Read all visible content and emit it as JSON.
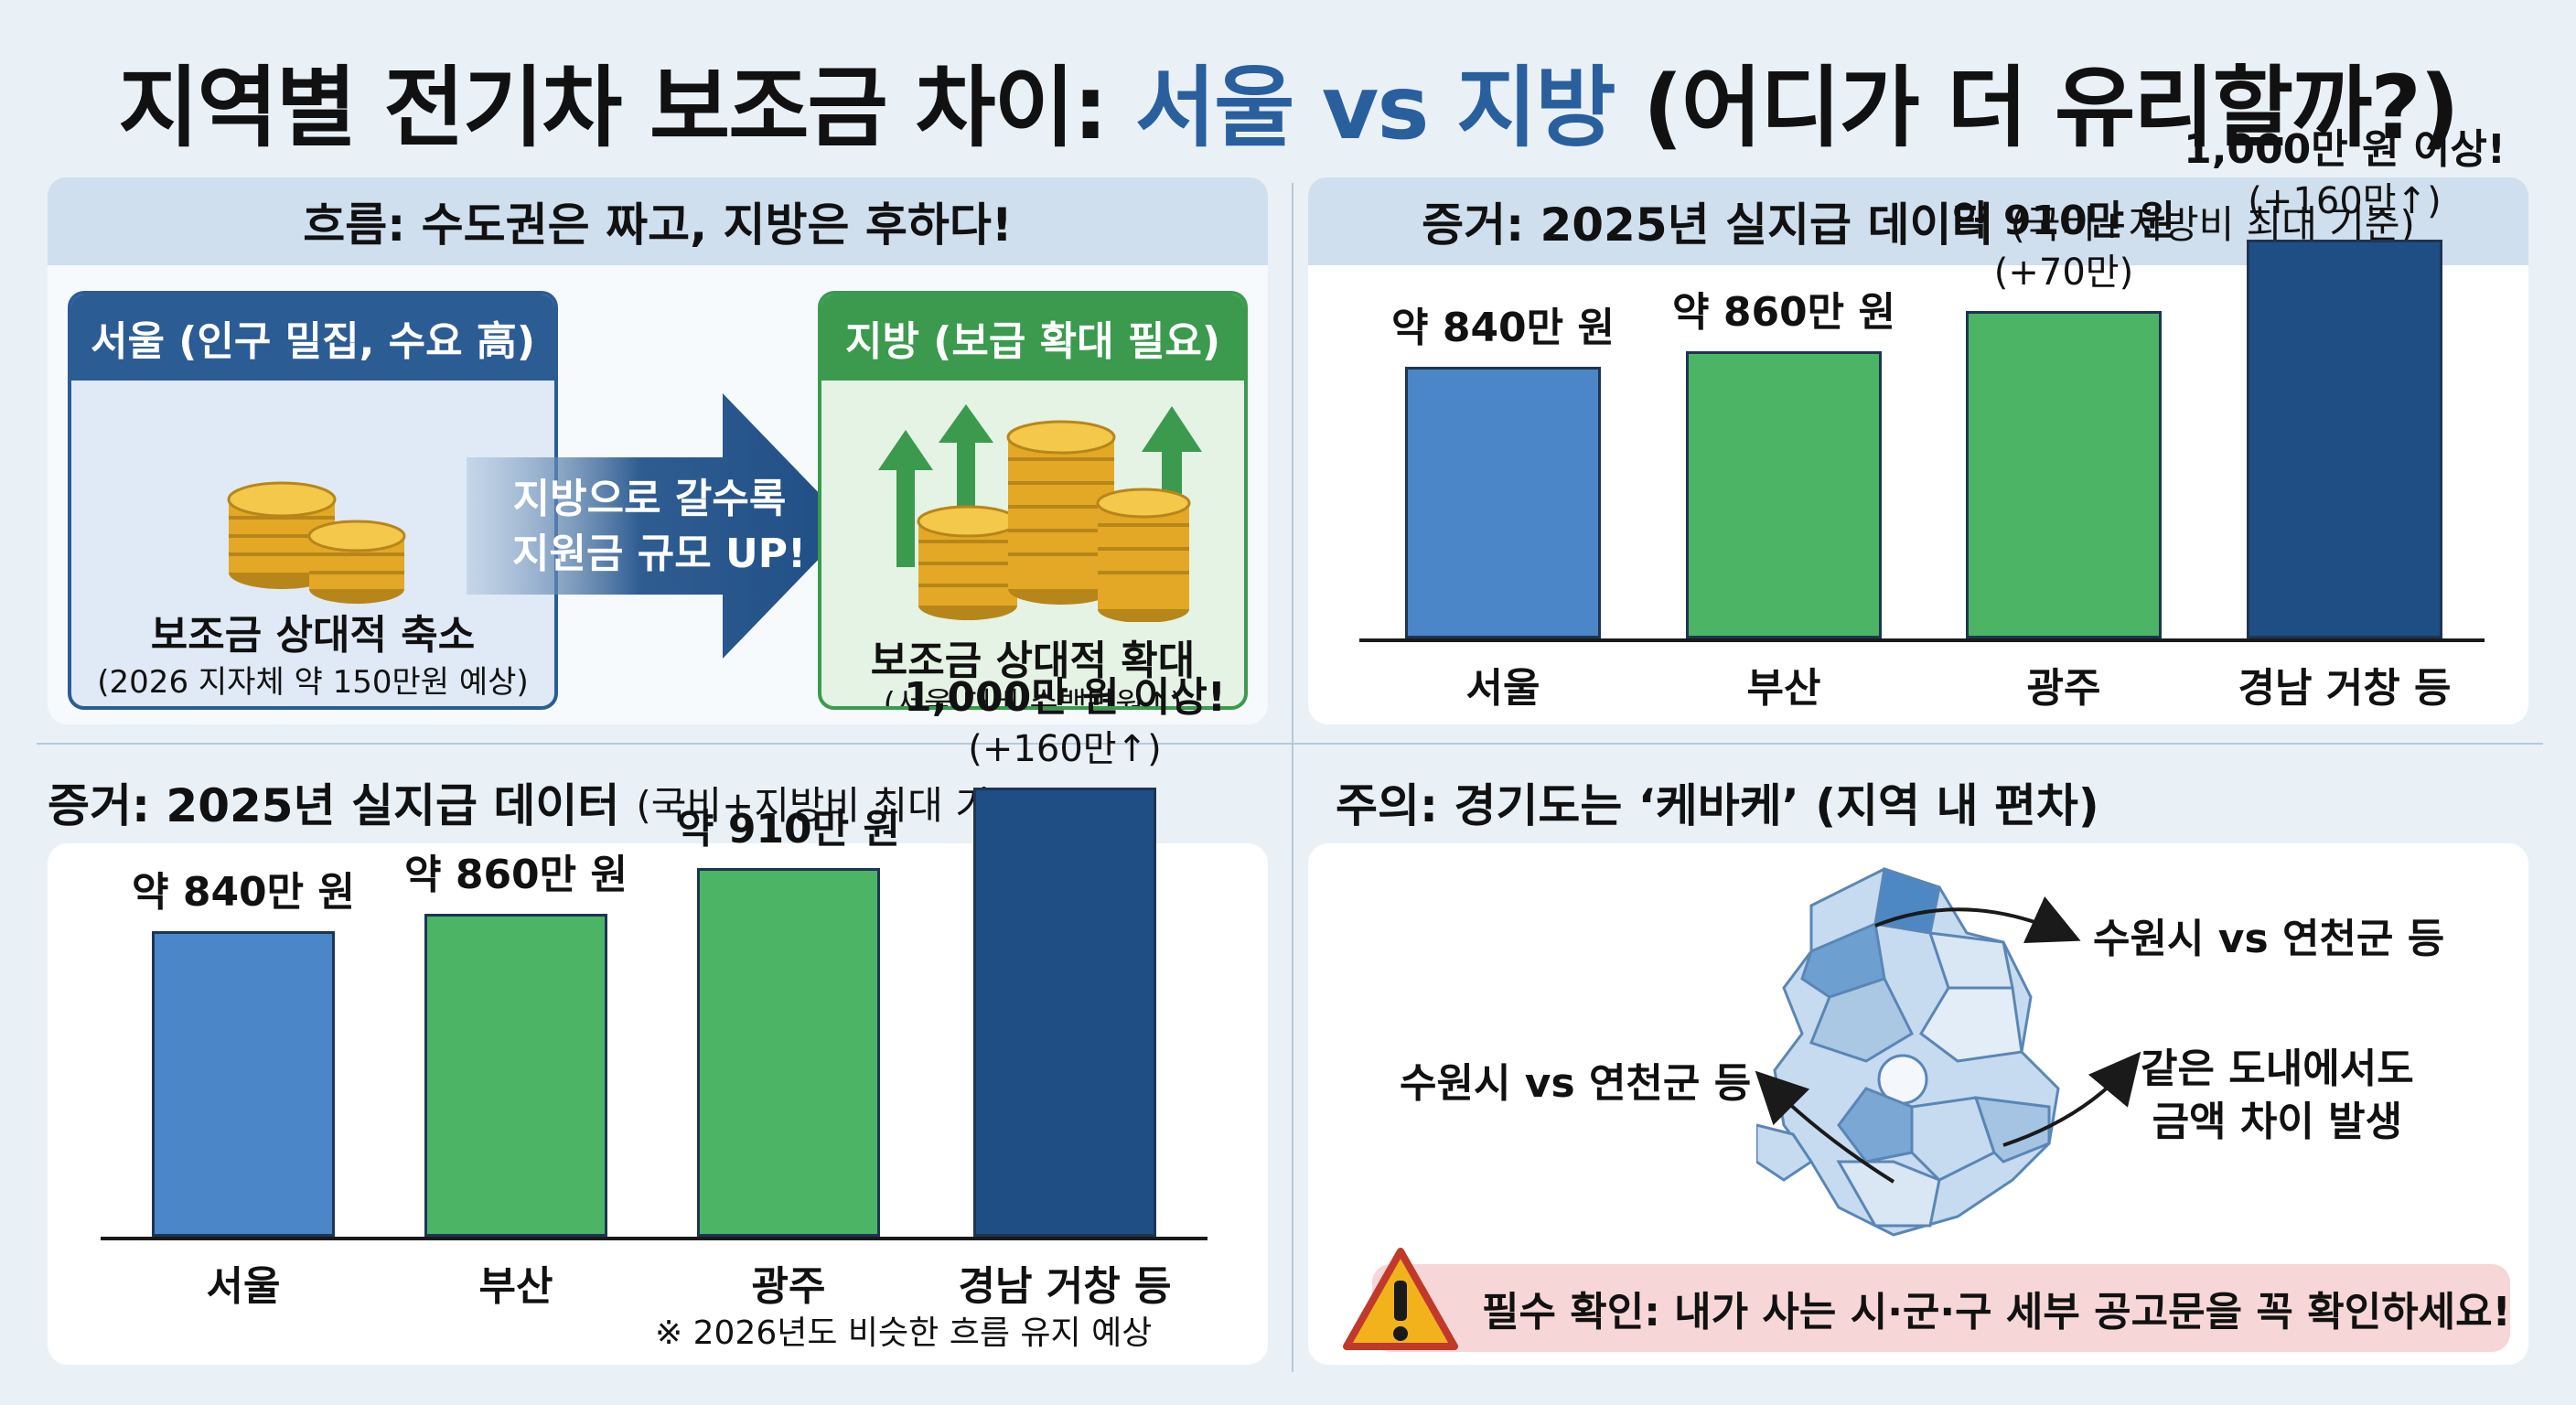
{
  "title": {
    "part1": "지역별 전기차 보조금 차이: ",
    "accent": "서울 vs 지방",
    "part2": " (어디가 더 유리할까?)"
  },
  "flow": {
    "heading": "흐름: 수도권은 짜고, 지방은 후하다!",
    "seoul": {
      "head": "서울 (인구 밀집, 수요 高)",
      "main": "보조금 상대적 축소",
      "sub": "(2026 지자체 약 150만원 예상)"
    },
    "arrow_line1": "지방으로 갈수록",
    "arrow_line2": "지원금 규모 UP!",
    "region": {
      "head": "지방 (보급 확대 필요)",
      "main": "보조금 상대적 확대",
      "sub": "(서울 대비 수백만원↑)"
    }
  },
  "evidence_top": {
    "heading": "증거: 2025년 실지급 데이터",
    "heading_sub": "(국비+지방비 최대 기준)"
  },
  "evidence_bottom": {
    "heading": "증거: 2025년 실지급 데이터",
    "heading_sub": "(국비+지방비 최대 기준)",
    "footnote": "※ 2026년도 비슷한 흐름 유지 예상"
  },
  "chart_data": [
    {
      "type": "bar",
      "title": "증거: 2025년 실지급 데이터",
      "subtitle": "(국비+지방비 최대 기준)",
      "categories": [
        "서울",
        "부산",
        "광주",
        "경남 거창 등"
      ],
      "values": [
        840,
        860,
        910,
        1000
      ],
      "unit": "만 원",
      "value_labels": [
        "약 840만 원",
        "약 860만 원",
        "약 910만 원",
        "1,000만 원 이상!"
      ],
      "annotations": [
        "",
        "",
        "(+70만)",
        "(+160만↑)"
      ],
      "colors": [
        "#4a86c8",
        "#4cb565",
        "#4cb565",
        "#1f4e85"
      ],
      "ylim": [
        500,
        1050
      ],
      "grid": false
    },
    {
      "type": "bar",
      "title": "증거: 2025년 실지급 데이터",
      "subtitle": "(국비+지방비 최대 기준)",
      "categories": [
        "서울",
        "부산",
        "광주",
        "경남 거창 등"
      ],
      "values": [
        840,
        860,
        910,
        1000
      ],
      "unit": "만 원",
      "value_labels": [
        "약 840만 원",
        "약 860만 원",
        "약 910만 원",
        "1,000만 원 이상!"
      ],
      "annotations": [
        "",
        "",
        "",
        "(+160만↑)"
      ],
      "colors": [
        "#4a86c8",
        "#4cb565",
        "#4cb565",
        "#1f4e85"
      ],
      "ylim": [
        500,
        1050
      ],
      "grid": false
    }
  ],
  "caution": {
    "heading": "주의: 경기도는 ‘케바케’ (지역 내 편차)",
    "note_top": "수원시 vs 연천군 등",
    "note_left": "수원시 vs 연천군 등",
    "note_right_line1": "같은 도내에서도",
    "note_right_line2": "금액 차이 발생",
    "warning": "필수 확인: 내가 사는 시·군·구 세부 공고문을 꼭 확인하세요!"
  },
  "colors": {
    "seoul_blue": "#4a86c8",
    "region_green": "#4cb565",
    "dark_navy": "#1f4e85",
    "accent_title": "#2a5f9e"
  }
}
